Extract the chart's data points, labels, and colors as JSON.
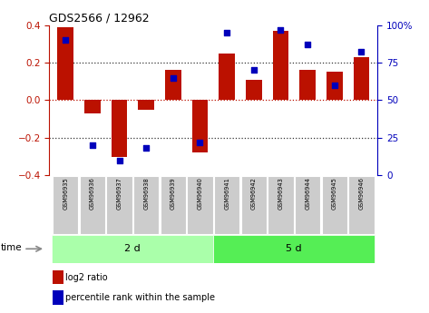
{
  "title": "GDS2566 / 12962",
  "samples": [
    "GSM96935",
    "GSM96936",
    "GSM96937",
    "GSM96938",
    "GSM96939",
    "GSM96940",
    "GSM96941",
    "GSM96942",
    "GSM96943",
    "GSM96944",
    "GSM96945",
    "GSM96946"
  ],
  "log2_ratio": [
    0.39,
    -0.07,
    -0.3,
    -0.05,
    0.16,
    -0.28,
    0.25,
    0.11,
    0.37,
    0.16,
    0.15,
    0.23
  ],
  "percentile_rank": [
    90,
    20,
    10,
    18,
    65,
    22,
    95,
    70,
    97,
    87,
    60,
    82
  ],
  "group1_label": "2 d",
  "group2_label": "5 d",
  "n_group1": 6,
  "n_group2": 6,
  "group1_color": "#AAFFAA",
  "group2_color": "#55EE55",
  "bar_color": "#BB1100",
  "dot_color": "#0000BB",
  "ylim_left": [
    -0.4,
    0.4
  ],
  "ylim_right": [
    0,
    100
  ],
  "yticks_left": [
    -0.4,
    -0.2,
    0.0,
    0.2,
    0.4
  ],
  "yticks_right": [
    0,
    25,
    50,
    75,
    100
  ],
  "ytick_labels_right": [
    "0",
    "25",
    "50",
    "75",
    "100%"
  ],
  "legend_log2": "log2 ratio",
  "legend_pct": "percentile rank within the sample",
  "time_label": "time",
  "sample_box_color": "#CCCCCC",
  "bar_width": 0.6,
  "dot_size": 18
}
